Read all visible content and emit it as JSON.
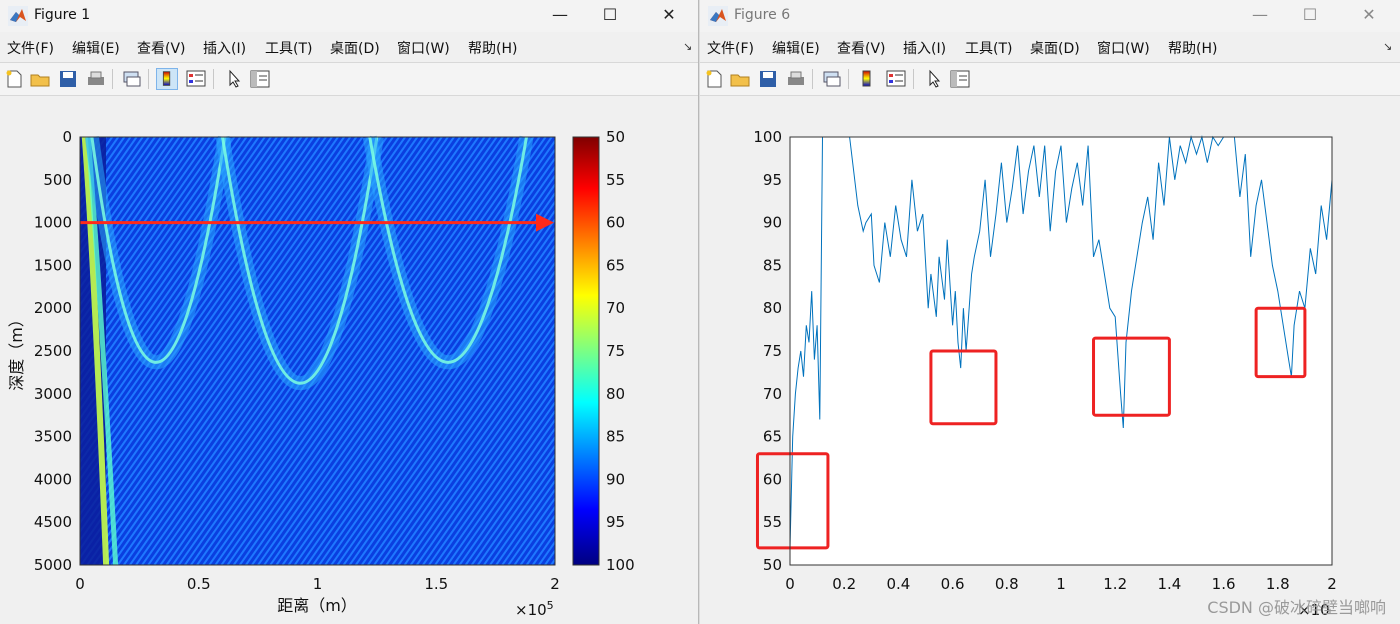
{
  "window1": {
    "title": "Figure 1",
    "menu": [
      "文件(F)",
      "编辑(E)",
      "查看(V)",
      "插入(I)",
      "工具(T)",
      "桌面(D)",
      "窗口(W)",
      "帮助(H)"
    ],
    "toolbar_icons": [
      "new-figure-icon",
      "open-icon",
      "save-icon",
      "print-icon",
      "link-icon",
      "colorbar-icon",
      "legend-icon",
      "pointer-icon",
      "property-editor-icon"
    ]
  },
  "window6": {
    "title": "Figure 6",
    "menu": [
      "文件(F)",
      "编辑(E)",
      "查看(V)",
      "插入(I)",
      "工具(T)",
      "桌面(D)",
      "窗口(W)",
      "帮助(H)"
    ],
    "toolbar_icons": [
      "new-figure-icon",
      "open-icon",
      "save-icon",
      "print-icon",
      "link-icon",
      "colorbar-icon",
      "legend-icon",
      "pointer-icon",
      "property-editor-icon"
    ]
  },
  "window_controls": {
    "minimize": "—",
    "maximize": "☐",
    "close": "✕"
  },
  "watermark": "CSDN @破冰碎壁当啷响",
  "chart_data": [
    {
      "type": "heatmap",
      "xlabel": "距离（m）",
      "ylabel": "深度（m）",
      "x_ticks": [
        "0",
        "0.5",
        "1",
        "1.5",
        "2"
      ],
      "x_exponent": "×10",
      "x_exponent_power": "5",
      "xlim": [
        0,
        200000
      ],
      "y_ticks": [
        "0",
        "500",
        "1000",
        "1500",
        "2000",
        "2500",
        "3000",
        "3500",
        "4000",
        "4500",
        "5000"
      ],
      "ylim": [
        0,
        5000
      ],
      "y_reversed": true,
      "colorbar_ticks": [
        "50",
        "55",
        "60",
        "65",
        "70",
        "75",
        "80",
        "85",
        "90",
        "95",
        "100"
      ],
      "colorbar_range": [
        50,
        100
      ],
      "colormap": "jet-reversed",
      "annotation": {
        "type": "arrow",
        "color": "#ff2a1a",
        "depth": 1000,
        "x_from": 0,
        "x_to": 200000
      },
      "ray_arcs": [
        {
          "x_start": 5000,
          "x_turn": 31000,
          "x_end": 61000,
          "turn_depth": 2700
        },
        {
          "x_start": 60000,
          "x_turn": 93000,
          "x_end": 125000,
          "turn_depth": 2950
        },
        {
          "x_start": 122000,
          "x_turn": 155000,
          "x_end": 188000,
          "turn_depth": 2700
        }
      ]
    },
    {
      "type": "line",
      "color": "#0072bd",
      "x_ticks": [
        "0",
        "0.2",
        "0.4",
        "0.6",
        "0.8",
        "1",
        "1.2",
        "1.4",
        "1.6",
        "1.8",
        "2"
      ],
      "x_exponent": "×10",
      "xlim": [
        0,
        2
      ],
      "y_ticks": [
        "50",
        "55",
        "60",
        "65",
        "70",
        "75",
        "80",
        "85",
        "90",
        "95",
        "100"
      ],
      "ylim": [
        50,
        100
      ],
      "series": [
        {
          "x": [
            0,
            0.01,
            0.02,
            0.03,
            0.04,
            0.05,
            0.06,
            0.07,
            0.08,
            0.09,
            0.1,
            0.11,
            0.12,
            0.125,
            0.13,
            0.14,
            0.16,
            0.18,
            0.2,
            0.22,
            0.25,
            0.27,
            0.28,
            0.3,
            0.31,
            0.33,
            0.35,
            0.37,
            0.39,
            0.41,
            0.43,
            0.45,
            0.47,
            0.49,
            0.51,
            0.52,
            0.54,
            0.55,
            0.57,
            0.58,
            0.6,
            0.61,
            0.62,
            0.63,
            0.64,
            0.65,
            0.67,
            0.68,
            0.7,
            0.72,
            0.74,
            0.76,
            0.78,
            0.8,
            0.82,
            0.84,
            0.86,
            0.88,
            0.9,
            0.92,
            0.94,
            0.96,
            0.98,
            1.0,
            1.02,
            1.04,
            1.06,
            1.08,
            1.1,
            1.12,
            1.14,
            1.16,
            1.18,
            1.2,
            1.22,
            1.23,
            1.24,
            1.26,
            1.28,
            1.3,
            1.32,
            1.34,
            1.36,
            1.38,
            1.4,
            1.42,
            1.44,
            1.46,
            1.48,
            1.5,
            1.52,
            1.54,
            1.56,
            1.58,
            1.6,
            1.62,
            1.64,
            1.66,
            1.68,
            1.7,
            1.72,
            1.74,
            1.76,
            1.78,
            1.8,
            1.82,
            1.84,
            1.85,
            1.86,
            1.88,
            1.9,
            1.92,
            1.94,
            1.96,
            1.98,
            2.0
          ],
          "y": [
            52,
            65,
            70,
            73,
            75,
            72,
            78,
            76,
            82,
            74,
            78,
            67,
            100,
            100,
            100,
            100,
            100,
            100,
            100,
            100,
            92,
            89,
            90,
            91,
            85,
            83,
            90,
            86,
            92,
            88,
            86,
            95,
            89,
            91,
            80,
            84,
            79,
            86,
            81,
            88,
            78,
            82,
            76,
            73,
            80,
            75,
            84,
            86,
            89,
            95,
            86,
            91,
            97,
            90,
            94,
            99,
            91,
            96,
            99,
            93,
            99,
            89,
            96,
            99,
            90,
            94,
            97,
            92,
            99,
            86,
            88,
            84,
            80,
            79,
            70,
            66,
            76,
            82,
            86,
            90,
            93,
            88,
            97,
            92,
            100,
            95,
            99,
            97,
            100,
            98,
            100,
            97,
            100,
            99,
            100,
            100,
            100,
            93,
            98,
            86,
            92,
            95,
            90,
            85,
            82,
            78,
            74,
            72,
            78,
            82,
            80,
            87,
            84,
            92,
            88,
            95
          ]
        }
      ],
      "highlight_boxes": [
        {
          "x_range": [
            -0.12,
            0.14
          ],
          "y_range": [
            52,
            63
          ],
          "color": "#ee2222"
        },
        {
          "x_range": [
            0.52,
            0.76
          ],
          "y_range": [
            66.5,
            75
          ],
          "color": "#ee2222"
        },
        {
          "x_range": [
            1.12,
            1.4
          ],
          "y_range": [
            67.5,
            76.5
          ],
          "color": "#ee2222"
        },
        {
          "x_range": [
            1.72,
            1.9
          ],
          "y_range": [
            72,
            80
          ],
          "color": "#ee2222"
        }
      ]
    }
  ]
}
